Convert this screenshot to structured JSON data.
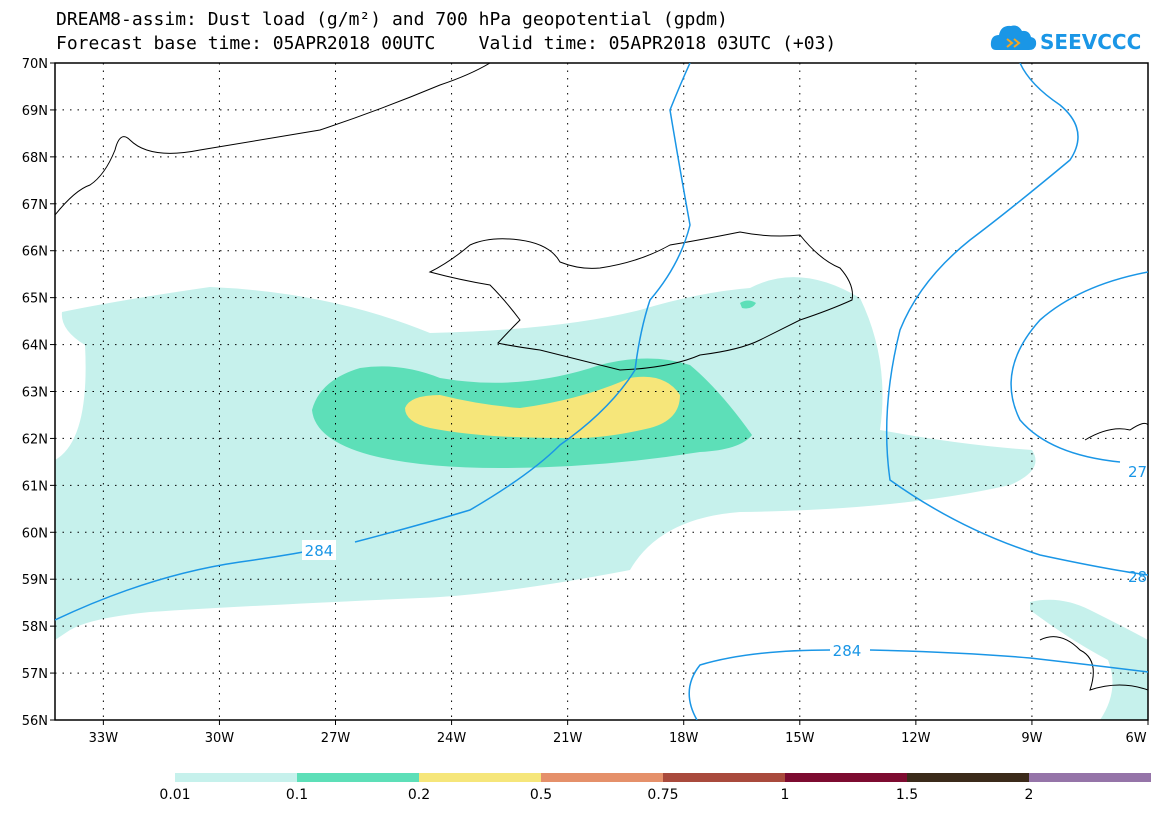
{
  "header": {
    "title_line1": "DREAM8-assim: Dust load (g/m²) and 700 hPa geopotential (gpdm)",
    "title_line2": "Forecast base time: 05APR2018 00UTC    Valid time: 05APR2018 03UTC (+03)",
    "logo_text": "SEEVCCC"
  },
  "map": {
    "lat_labels": [
      "70N",
      "69N",
      "68N",
      "67N",
      "66N",
      "65N",
      "64N",
      "63N",
      "62N",
      "61N",
      "60N",
      "59N",
      "58N",
      "57N",
      "56N"
    ],
    "lon_labels": [
      "33W",
      "30W",
      "27W",
      "24W",
      "21W",
      "18W",
      "15W",
      "12W",
      "9W",
      "6W"
    ],
    "contour_labels": [
      "284",
      "284",
      "27",
      "28"
    ]
  },
  "colorbar": {
    "colors": [
      "#c6f1ec",
      "#5ddfb8",
      "#f6e67a",
      "#e5906a",
      "#a94a3c",
      "#7d0b30",
      "#3b2a1a",
      "#9574a8"
    ],
    "labels": [
      "0.01",
      "0.1",
      "0.2",
      "0.5",
      "0.75",
      "1",
      "1.5",
      "2"
    ]
  },
  "colors": {
    "contour": "#1a96e6",
    "coast": "#000000"
  }
}
